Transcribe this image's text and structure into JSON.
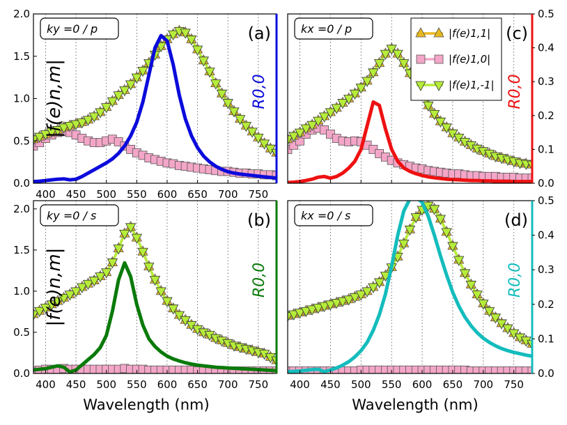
{
  "figure": {
    "xlabel": "Wavelength (nm)",
    "left_ylabel": "|f(e)n,m|",
    "right_ylabel": "R0,0"
  },
  "legend": [
    {
      "label": "|f(e)1,1|",
      "line": "#e8b820",
      "marker": "triangle-up",
      "marker_color": "#e8b820"
    },
    {
      "label": "|f(e)1,0|",
      "line": "#f4a6c8",
      "marker": "square",
      "marker_color": "#f4a6c8"
    },
    {
      "label": "|f(e)1,-1|",
      "line": "#b6ec3a",
      "marker": "triangle-down",
      "marker_color": "#b6ec3a"
    }
  ],
  "chart_data": [
    {
      "panel": "(a)",
      "annotation": "ky =0 / p",
      "type": "line",
      "title": "",
      "xlabel": "",
      "ylabel": "|f(e)n,m|",
      "ylabel_right": "R0,0",
      "xlim": [
        380,
        780
      ],
      "ylim": [
        0,
        2.0
      ],
      "ylim_right": [
        0,
        0.5
      ],
      "xticks": [
        "400",
        "450",
        "500",
        "550",
        "600",
        "650",
        "700",
        "750"
      ],
      "yticks": [
        "0.0",
        "0.5",
        "1.0",
        "1.5",
        "2.0"
      ],
      "yticks_right": [],
      "reflectance_color": "#0b0bdc",
      "x": [
        380,
        390,
        400,
        410,
        420,
        430,
        440,
        450,
        460,
        470,
        480,
        490,
        500,
        510,
        520,
        530,
        540,
        550,
        560,
        570,
        580,
        590,
        600,
        610,
        620,
        630,
        640,
        650,
        660,
        670,
        680,
        690,
        700,
        710,
        720,
        730,
        740,
        750,
        760,
        770,
        780
      ],
      "f11": [
        0.52,
        0.55,
        0.58,
        0.61,
        0.63,
        0.66,
        0.68,
        0.7,
        0.72,
        0.75,
        0.79,
        0.84,
        0.9,
        0.97,
        1.04,
        1.1,
        1.17,
        1.25,
        1.33,
        1.42,
        1.52,
        1.62,
        1.7,
        1.76,
        1.8,
        1.78,
        1.7,
        1.58,
        1.45,
        1.32,
        1.18,
        1.06,
        0.95,
        0.85,
        0.76,
        0.68,
        0.61,
        0.54,
        0.47,
        0.41,
        0.36
      ],
      "f10": [
        0.44,
        0.48,
        0.53,
        0.57,
        0.6,
        0.61,
        0.6,
        0.57,
        0.53,
        0.5,
        0.48,
        0.48,
        0.5,
        0.52,
        0.49,
        0.44,
        0.4,
        0.36,
        0.33,
        0.3,
        0.28,
        0.26,
        0.24,
        0.23,
        0.21,
        0.2,
        0.19,
        0.18,
        0.17,
        0.16,
        0.15,
        0.14,
        0.14,
        0.13,
        0.12,
        0.12,
        0.11,
        0.11,
        0.1,
        0.1,
        0.09
      ],
      "f1m1": [
        0.52,
        0.55,
        0.58,
        0.61,
        0.63,
        0.66,
        0.68,
        0.7,
        0.72,
        0.75,
        0.79,
        0.84,
        0.9,
        0.97,
        1.04,
        1.1,
        1.17,
        1.25,
        1.33,
        1.42,
        1.52,
        1.62,
        1.7,
        1.76,
        1.8,
        1.78,
        1.7,
        1.58,
        1.45,
        1.32,
        1.18,
        1.06,
        0.95,
        0.85,
        0.76,
        0.68,
        0.61,
        0.54,
        0.47,
        0.41,
        0.36
      ],
      "R": [
        0.005,
        0.006,
        0.008,
        0.01,
        0.012,
        0.013,
        0.01,
        0.012,
        0.02,
        0.03,
        0.04,
        0.05,
        0.06,
        0.072,
        0.088,
        0.11,
        0.14,
        0.18,
        0.24,
        0.32,
        0.4,
        0.436,
        0.42,
        0.35,
        0.26,
        0.19,
        0.14,
        0.105,
        0.08,
        0.063,
        0.05,
        0.041,
        0.034,
        0.03,
        0.027,
        0.025,
        0.023,
        0.021,
        0.019,
        0.017,
        0.015
      ]
    },
    {
      "panel": "(c)",
      "annotation": "kx =0 / p",
      "type": "line",
      "title": "",
      "xlabel": "",
      "ylabel": "",
      "ylabel_right": "R0,0",
      "xlim": [
        380,
        780
      ],
      "ylim": [
        0,
        2.0
      ],
      "ylim_right": [
        0,
        0.5
      ],
      "xticks": [],
      "yticks": [],
      "yticks_right": [
        "0.0",
        "0.1",
        "0.2",
        "0.3",
        "0.4",
        "0.5"
      ],
      "reflectance_color": "#ee1111",
      "x": [
        380,
        390,
        400,
        410,
        420,
        430,
        440,
        450,
        460,
        470,
        480,
        490,
        500,
        510,
        520,
        530,
        540,
        550,
        560,
        570,
        580,
        590,
        600,
        610,
        620,
        630,
        640,
        650,
        660,
        670,
        680,
        690,
        700,
        710,
        720,
        730,
        740,
        750,
        760,
        770,
        780
      ],
      "f11": [
        0.52,
        0.56,
        0.6,
        0.65,
        0.69,
        0.74,
        0.79,
        0.84,
        0.89,
        0.95,
        1.0,
        1.06,
        1.13,
        1.21,
        1.31,
        1.42,
        1.53,
        1.59,
        1.53,
        1.42,
        1.3,
        1.17,
        1.04,
        0.92,
        0.82,
        0.73,
        0.66,
        0.59,
        0.54,
        0.49,
        0.45,
        0.41,
        0.38,
        0.35,
        0.32,
        0.3,
        0.28,
        0.26,
        0.24,
        0.23,
        0.22
      ],
      "f10": [
        0.4,
        0.45,
        0.5,
        0.58,
        0.63,
        0.65,
        0.63,
        0.58,
        0.53,
        0.5,
        0.49,
        0.5,
        0.49,
        0.45,
        0.4,
        0.35,
        0.31,
        0.27,
        0.24,
        0.22,
        0.2,
        0.18,
        0.17,
        0.15,
        0.14,
        0.13,
        0.12,
        0.11,
        0.11,
        0.1,
        0.09,
        0.09,
        0.08,
        0.08,
        0.08,
        0.07,
        0.07,
        0.07,
        0.06,
        0.06,
        0.06
      ],
      "f1m1": [
        0.52,
        0.56,
        0.6,
        0.65,
        0.69,
        0.74,
        0.79,
        0.84,
        0.89,
        0.95,
        1.0,
        1.06,
        1.13,
        1.21,
        1.31,
        1.42,
        1.53,
        1.59,
        1.53,
        1.42,
        1.3,
        1.17,
        1.04,
        0.92,
        0.82,
        0.73,
        0.66,
        0.59,
        0.54,
        0.49,
        0.45,
        0.41,
        0.38,
        0.35,
        0.32,
        0.3,
        0.28,
        0.26,
        0.24,
        0.23,
        0.22
      ],
      "R": [
        0.002,
        0.003,
        0.005,
        0.008,
        0.012,
        0.018,
        0.02,
        0.015,
        0.02,
        0.03,
        0.045,
        0.065,
        0.1,
        0.17,
        0.24,
        0.23,
        0.16,
        0.1,
        0.065,
        0.045,
        0.035,
        0.028,
        0.023,
        0.019,
        0.016,
        0.014,
        0.012,
        0.011,
        0.01,
        0.009,
        0.008,
        0.008,
        0.007,
        0.007,
        0.006,
        0.006,
        0.006,
        0.005,
        0.005,
        0.005,
        0.005
      ]
    },
    {
      "panel": "(b)",
      "annotation": "ky =0 / s",
      "type": "line",
      "title": "",
      "xlabel": "Wavelength (nm)",
      "ylabel": "|f(e)n,m|",
      "ylabel_right": "R0,0",
      "xlim": [
        380,
        780
      ],
      "ylim": [
        0,
        2.1
      ],
      "ylim_right": [
        0,
        0.5
      ],
      "xticks": [
        "400",
        "450",
        "500",
        "550",
        "600",
        "650",
        "700",
        "750"
      ],
      "yticks": [
        "0.0",
        "0.5",
        "1.0",
        "1.5",
        "2.0"
      ],
      "yticks_right": [],
      "reflectance_color": "#0a7a0a",
      "x": [
        380,
        390,
        400,
        410,
        420,
        430,
        440,
        450,
        460,
        470,
        480,
        490,
        500,
        510,
        520,
        530,
        540,
        550,
        560,
        570,
        580,
        590,
        600,
        610,
        620,
        630,
        640,
        650,
        660,
        670,
        680,
        690,
        700,
        710,
        720,
        730,
        740,
        750,
        760,
        770,
        780
      ],
      "f11": [
        0.72,
        0.76,
        0.8,
        0.84,
        0.88,
        0.92,
        0.96,
        1.0,
        1.05,
        1.09,
        1.13,
        1.18,
        1.23,
        1.35,
        1.52,
        1.7,
        1.78,
        1.65,
        1.48,
        1.3,
        1.14,
        1.0,
        0.88,
        0.79,
        0.71,
        0.65,
        0.59,
        0.54,
        0.5,
        0.47,
        0.43,
        0.4,
        0.37,
        0.34,
        0.32,
        0.3,
        0.28,
        0.26,
        0.24,
        0.2,
        0.16
      ],
      "f10": [
        0.03,
        0.04,
        0.05,
        0.05,
        0.05,
        0.06,
        0.05,
        0.05,
        0.05,
        0.05,
        0.05,
        0.05,
        0.05,
        0.05,
        0.05,
        0.06,
        0.05,
        0.05,
        0.05,
        0.04,
        0.04,
        0.04,
        0.04,
        0.04,
        0.04,
        0.04,
        0.04,
        0.03,
        0.03,
        0.03,
        0.03,
        0.03,
        0.03,
        0.03,
        0.03,
        0.03,
        0.03,
        0.03,
        0.03,
        0.03,
        0.03
      ],
      "f1m1": [
        0.72,
        0.76,
        0.8,
        0.84,
        0.88,
        0.92,
        0.96,
        1.0,
        1.05,
        1.09,
        1.13,
        1.18,
        1.23,
        1.35,
        1.52,
        1.7,
        1.78,
        1.65,
        1.48,
        1.3,
        1.14,
        1.0,
        0.88,
        0.79,
        0.71,
        0.65,
        0.59,
        0.54,
        0.5,
        0.47,
        0.43,
        0.4,
        0.37,
        0.34,
        0.32,
        0.3,
        0.28,
        0.26,
        0.24,
        0.2,
        0.16
      ],
      "R": [
        0.01,
        0.012,
        0.014,
        0.018,
        0.022,
        0.018,
        0.004,
        0.01,
        0.025,
        0.04,
        0.055,
        0.075,
        0.11,
        0.18,
        0.27,
        0.32,
        0.28,
        0.2,
        0.14,
        0.1,
        0.078,
        0.062,
        0.05,
        0.042,
        0.036,
        0.031,
        0.027,
        0.024,
        0.022,
        0.02,
        0.018,
        0.017,
        0.016,
        0.015,
        0.014,
        0.013,
        0.012,
        0.011,
        0.01,
        0.009,
        0.008
      ]
    },
    {
      "panel": "(d)",
      "annotation": "kx =0 / s",
      "type": "line",
      "title": "",
      "xlabel": "Wavelength (nm)",
      "ylabel": "",
      "ylabel_right": "R0,0",
      "xlim": [
        380,
        780
      ],
      "ylim": [
        0,
        2.1
      ],
      "ylim_right": [
        0,
        0.5
      ],
      "xticks": [
        "400",
        "450",
        "500",
        "550",
        "600",
        "650",
        "700",
        "750"
      ],
      "yticks": [],
      "yticks_right": [
        "0.0",
        "0.1",
        "0.2",
        "0.3",
        "0.4",
        "0.5"
      ],
      "reflectance_color": "#14bcbc",
      "x": [
        380,
        390,
        400,
        410,
        420,
        430,
        440,
        450,
        460,
        470,
        480,
        490,
        500,
        510,
        520,
        530,
        540,
        550,
        560,
        570,
        580,
        590,
        600,
        610,
        620,
        630,
        640,
        650,
        660,
        670,
        680,
        690,
        700,
        710,
        720,
        730,
        740,
        750,
        760,
        770,
        780
      ],
      "f11": [
        0.7,
        0.72,
        0.74,
        0.76,
        0.78,
        0.8,
        0.82,
        0.84,
        0.86,
        0.88,
        0.9,
        0.93,
        0.96,
        1.0,
        1.05,
        1.11,
        1.19,
        1.29,
        1.42,
        1.58,
        1.75,
        1.9,
        1.99,
        2.04,
        2.0,
        1.88,
        1.72,
        1.55,
        1.38,
        1.22,
        1.08,
        0.96,
        0.85,
        0.76,
        0.68,
        0.61,
        0.55,
        0.49,
        0.44,
        0.4,
        0.36
      ],
      "f10": [
        0.03,
        0.03,
        0.03,
        0.03,
        0.03,
        0.03,
        0.03,
        0.03,
        0.03,
        0.03,
        0.03,
        0.03,
        0.04,
        0.04,
        0.04,
        0.04,
        0.04,
        0.04,
        0.04,
        0.04,
        0.04,
        0.04,
        0.04,
        0.04,
        0.04,
        0.04,
        0.04,
        0.04,
        0.04,
        0.04,
        0.03,
        0.03,
        0.03,
        0.03,
        0.03,
        0.03,
        0.03,
        0.03,
        0.03,
        0.03,
        0.03
      ],
      "f1m1": [
        0.7,
        0.72,
        0.74,
        0.76,
        0.78,
        0.8,
        0.82,
        0.84,
        0.86,
        0.88,
        0.9,
        0.93,
        0.96,
        1.0,
        1.05,
        1.11,
        1.19,
        1.29,
        1.42,
        1.58,
        1.75,
        1.9,
        1.99,
        2.04,
        2.0,
        1.88,
        1.72,
        1.55,
        1.38,
        1.22,
        1.08,
        0.96,
        0.85,
        0.76,
        0.68,
        0.61,
        0.55,
        0.49,
        0.44,
        0.4,
        0.36
      ],
      "R": [
        0.005,
        0.006,
        0.007,
        0.009,
        0.011,
        0.012,
        0.005,
        0.01,
        0.016,
        0.024,
        0.034,
        0.048,
        0.066,
        0.09,
        0.125,
        0.17,
        0.23,
        0.31,
        0.4,
        0.47,
        0.505,
        0.51,
        0.495,
        0.455,
        0.4,
        0.34,
        0.285,
        0.235,
        0.195,
        0.163,
        0.138,
        0.118,
        0.102,
        0.09,
        0.08,
        0.072,
        0.066,
        0.061,
        0.057,
        0.053,
        0.05
      ]
    }
  ]
}
